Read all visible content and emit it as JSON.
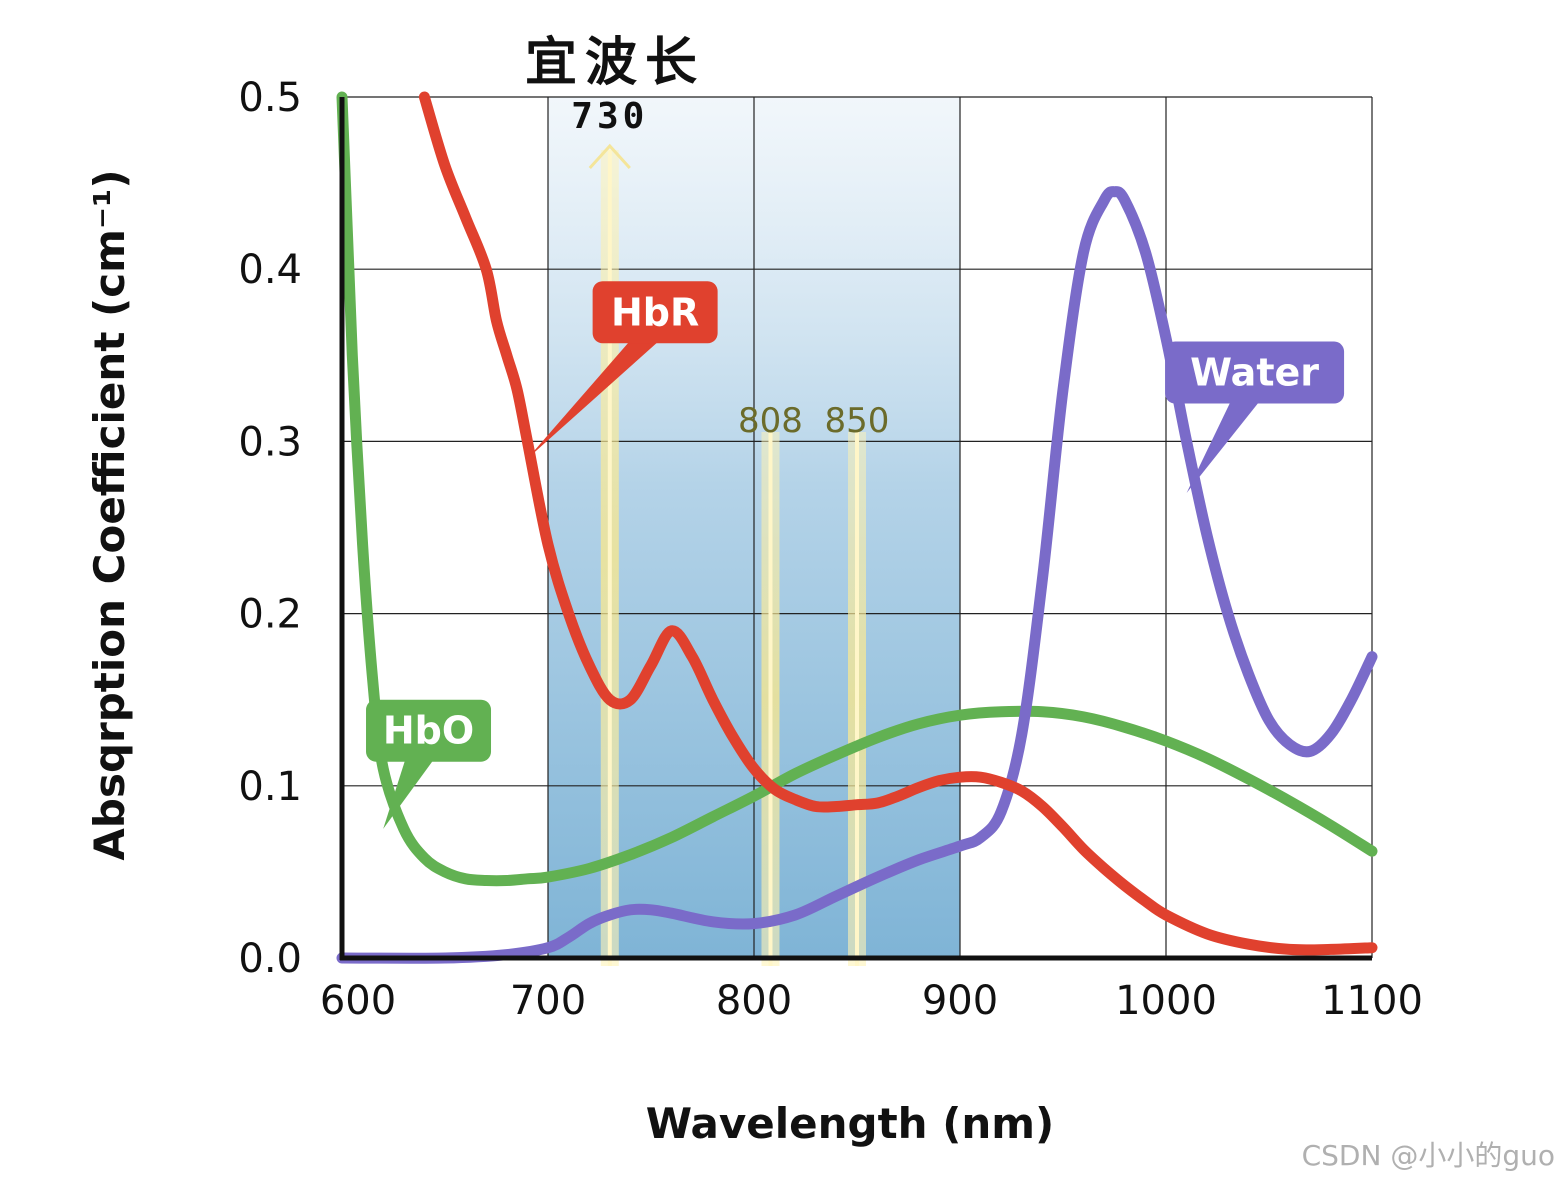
{
  "chart_data": {
    "type": "line",
    "title": "宜波长",
    "xlabel": "Wavelength (nm)",
    "ylabel": "Absqrption Coefficient (cm⁻¹)",
    "xlim": [
      600,
      1100
    ],
    "ylim": [
      0,
      0.5
    ],
    "x_ticks": [
      "600",
      "700",
      "800",
      "900",
      "1000",
      "1100"
    ],
    "y_ticks": [
      "0.0",
      "0.1",
      "0.2",
      "0.3",
      "0.4",
      "0.5"
    ],
    "grid": true,
    "highlight_band": {
      "from": 700,
      "to": 900,
      "color": "#7fb8d8"
    },
    "wavelength_markers": [
      {
        "x": 730,
        "label": "730"
      },
      {
        "x": 808,
        "label": "808"
      },
      {
        "x": 850,
        "label": "850"
      }
    ],
    "series": [
      {
        "name": "HbR",
        "color": "#e0412e",
        "label_at": [
          752,
          0.375
        ],
        "pointer_to": [
          690,
          0.29
        ],
        "x": [
          640,
          650,
          660,
          670,
          675,
          680,
          685,
          690,
          700,
          710,
          720,
          730,
          740,
          750,
          760,
          770,
          780,
          790,
          800,
          810,
          820,
          830,
          840,
          850,
          860,
          870,
          880,
          890,
          900,
          910,
          920,
          930,
          940,
          950,
          960,
          970,
          980,
          990,
          1000,
          1020,
          1040,
          1060,
          1080,
          1100
        ],
        "y": [
          0.5,
          0.46,
          0.43,
          0.4,
          0.37,
          0.35,
          0.33,
          0.3,
          0.24,
          0.2,
          0.17,
          0.15,
          0.15,
          0.17,
          0.19,
          0.175,
          0.15,
          0.128,
          0.11,
          0.098,
          0.092,
          0.088,
          0.088,
          0.089,
          0.09,
          0.094,
          0.099,
          0.103,
          0.105,
          0.105,
          0.102,
          0.097,
          0.088,
          0.076,
          0.063,
          0.052,
          0.042,
          0.033,
          0.025,
          0.014,
          0.008,
          0.005,
          0.005,
          0.006
        ]
      },
      {
        "name": "HbO",
        "color": "#62b152",
        "label_at": [
          642,
          0.132
        ],
        "pointer_to": [
          620,
          0.075
        ],
        "x": [
          600,
          602,
          605,
          610,
          615,
          620,
          630,
          640,
          650,
          660,
          670,
          680,
          690,
          700,
          720,
          740,
          760,
          780,
          800,
          820,
          840,
          860,
          880,
          900,
          920,
          940,
          960,
          980,
          1000,
          1020,
          1040,
          1060,
          1080,
          1100
        ],
        "y": [
          0.5,
          0.44,
          0.35,
          0.24,
          0.16,
          0.11,
          0.075,
          0.058,
          0.05,
          0.046,
          0.045,
          0.045,
          0.046,
          0.047,
          0.052,
          0.06,
          0.07,
          0.082,
          0.094,
          0.107,
          0.118,
          0.128,
          0.136,
          0.141,
          0.143,
          0.143,
          0.14,
          0.134,
          0.126,
          0.116,
          0.104,
          0.091,
          0.077,
          0.062
        ]
      },
      {
        "name": "Water",
        "color": "#7a6bc9",
        "label_at": [
          1043,
          0.34
        ],
        "pointer_to": [
          1010,
          0.27
        ],
        "x": [
          600,
          650,
          680,
          700,
          710,
          720,
          730,
          740,
          750,
          760,
          780,
          800,
          820,
          840,
          860,
          880,
          900,
          910,
          920,
          930,
          940,
          950,
          960,
          970,
          975,
          980,
          990,
          1000,
          1010,
          1020,
          1030,
          1040,
          1050,
          1060,
          1070,
          1080,
          1090,
          1100
        ],
        "y": [
          0.0,
          0.0,
          0.002,
          0.006,
          0.012,
          0.02,
          0.025,
          0.028,
          0.028,
          0.026,
          0.021,
          0.02,
          0.025,
          0.036,
          0.047,
          0.057,
          0.065,
          0.07,
          0.085,
          0.13,
          0.22,
          0.33,
          0.41,
          0.44,
          0.445,
          0.44,
          0.41,
          0.36,
          0.3,
          0.245,
          0.2,
          0.165,
          0.138,
          0.124,
          0.12,
          0.13,
          0.15,
          0.175
        ]
      }
    ]
  },
  "watermark": "CSDN @小小的guo"
}
